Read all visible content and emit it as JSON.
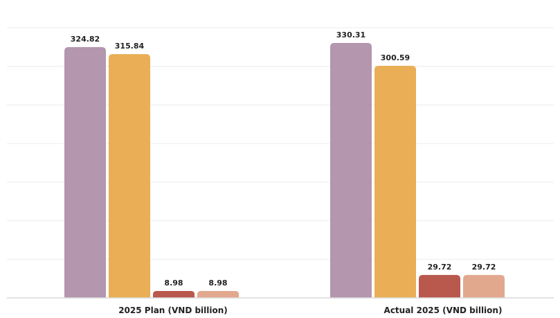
{
  "chart_data": {
    "type": "bar",
    "categories": [
      "2025 Plan (VND billion)",
      "Actual 2025 (VND billion)"
    ],
    "series": [
      {
        "values": [
          324.82,
          330.31
        ],
        "color": "#b496ae"
      },
      {
        "values": [
          315.84,
          300.59
        ],
        "color": "#e9ae56"
      },
      {
        "values": [
          8.98,
          29.72
        ],
        "color": "#b9584c"
      },
      {
        "values": [
          8.98,
          29.72
        ],
        "color": "#e2a88e"
      }
    ],
    "value_labels": [
      [
        "324.82",
        "315.84",
        "8.98",
        "8.98"
      ],
      [
        "330.31",
        "300.59",
        "29.72",
        "29.72"
      ]
    ],
    "ylim": [
      0,
      350
    ],
    "grid": true,
    "legend": "none"
  }
}
